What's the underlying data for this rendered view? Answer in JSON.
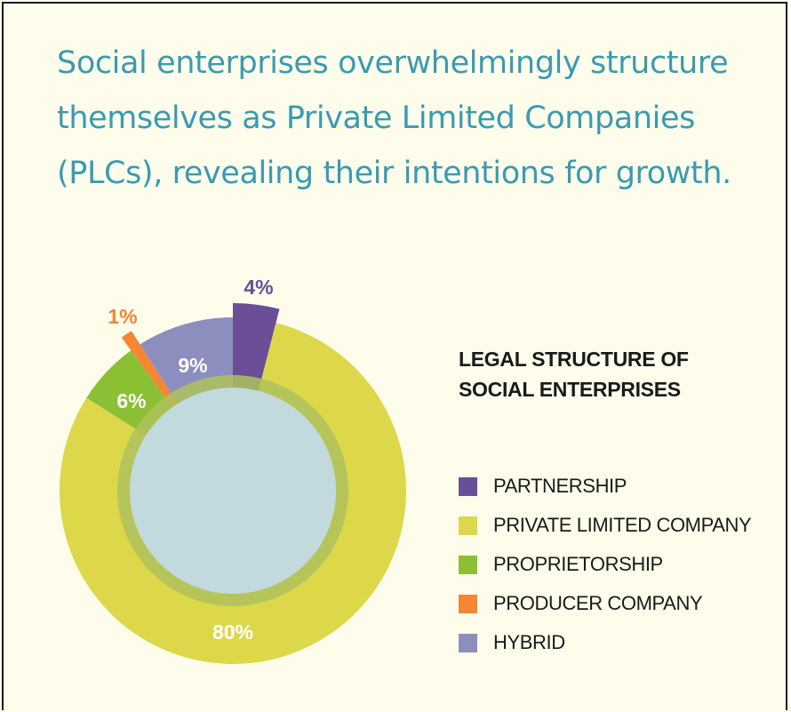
{
  "headline": {
    "line1": "Social enterprises overwhelmingly structure",
    "line2": "themselves as Private Limited Companies",
    "line3": "(PLCs), revealing their intentions for growth."
  },
  "legend_title": {
    "line1": "LEGAL STRUCTURE OF",
    "line2": "SOCIAL ENTERPRISES"
  },
  "chart_data": {
    "type": "pie",
    "variant": "donut",
    "title": "LEGAL STRUCTURE OF SOCIAL ENTERPRISES",
    "legend_position": "right",
    "slices": [
      {
        "name": "PARTNERSHIP",
        "value": 4,
        "label": "4%",
        "color": "#6a4f96",
        "label_color": "#6a4f96"
      },
      {
        "name": "PRIVATE LIMITED COMPANY",
        "value": 80,
        "label": "80%",
        "color": "#dcd84a",
        "label_color": "#ffffff"
      },
      {
        "name": "PROPRIETORSHIP",
        "value": 6,
        "label": "6%",
        "color": "#8cc034",
        "label_color": "#ffffff"
      },
      {
        "name": "PRODUCER COMPANY",
        "value": 1,
        "label": "1%",
        "color": "#f58634",
        "label_color": "#f58634"
      },
      {
        "name": "HYBRID",
        "value": 9,
        "label": "9%",
        "color": "#8c8fbd",
        "label_color": "#ffffff"
      }
    ],
    "center_color": "#c2d9de",
    "center_ring_color": "#aec25c"
  }
}
